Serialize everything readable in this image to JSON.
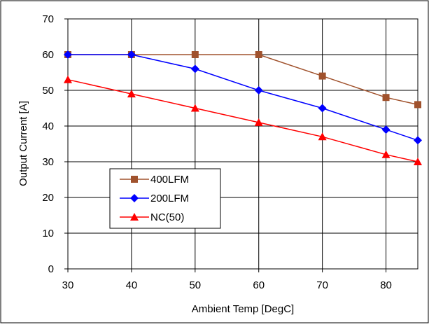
{
  "chart_data": {
    "type": "line",
    "title": "",
    "xlabel": "Ambient Temp [DegC]",
    "ylabel": "Output Current [A]",
    "xlim": [
      30,
      85
    ],
    "ylim": [
      0,
      70
    ],
    "x_ticks": [
      30,
      40,
      50,
      60,
      70,
      80
    ],
    "y_ticks": [
      0,
      10,
      20,
      30,
      40,
      50,
      60,
      70
    ],
    "grid": true,
    "legend_position": "bottom-left",
    "series": [
      {
        "name": "400LFM",
        "color": "#a0522d",
        "marker": "square",
        "x": [
          30,
          40,
          50,
          60,
          70,
          80,
          85
        ],
        "y": [
          60,
          60,
          60,
          60,
          54,
          48,
          46
        ]
      },
      {
        "name": "200LFM",
        "color": "#0000ff",
        "marker": "diamond",
        "x": [
          30,
          40,
          50,
          60,
          70,
          80,
          85
        ],
        "y": [
          60,
          60,
          56,
          50,
          45,
          39,
          36
        ]
      },
      {
        "name": "NC(50)",
        "color": "#ff0000",
        "marker": "triangle",
        "x": [
          30,
          40,
          50,
          60,
          70,
          80,
          85
        ],
        "y": [
          53,
          49,
          45,
          41,
          37,
          32,
          30
        ]
      }
    ]
  }
}
